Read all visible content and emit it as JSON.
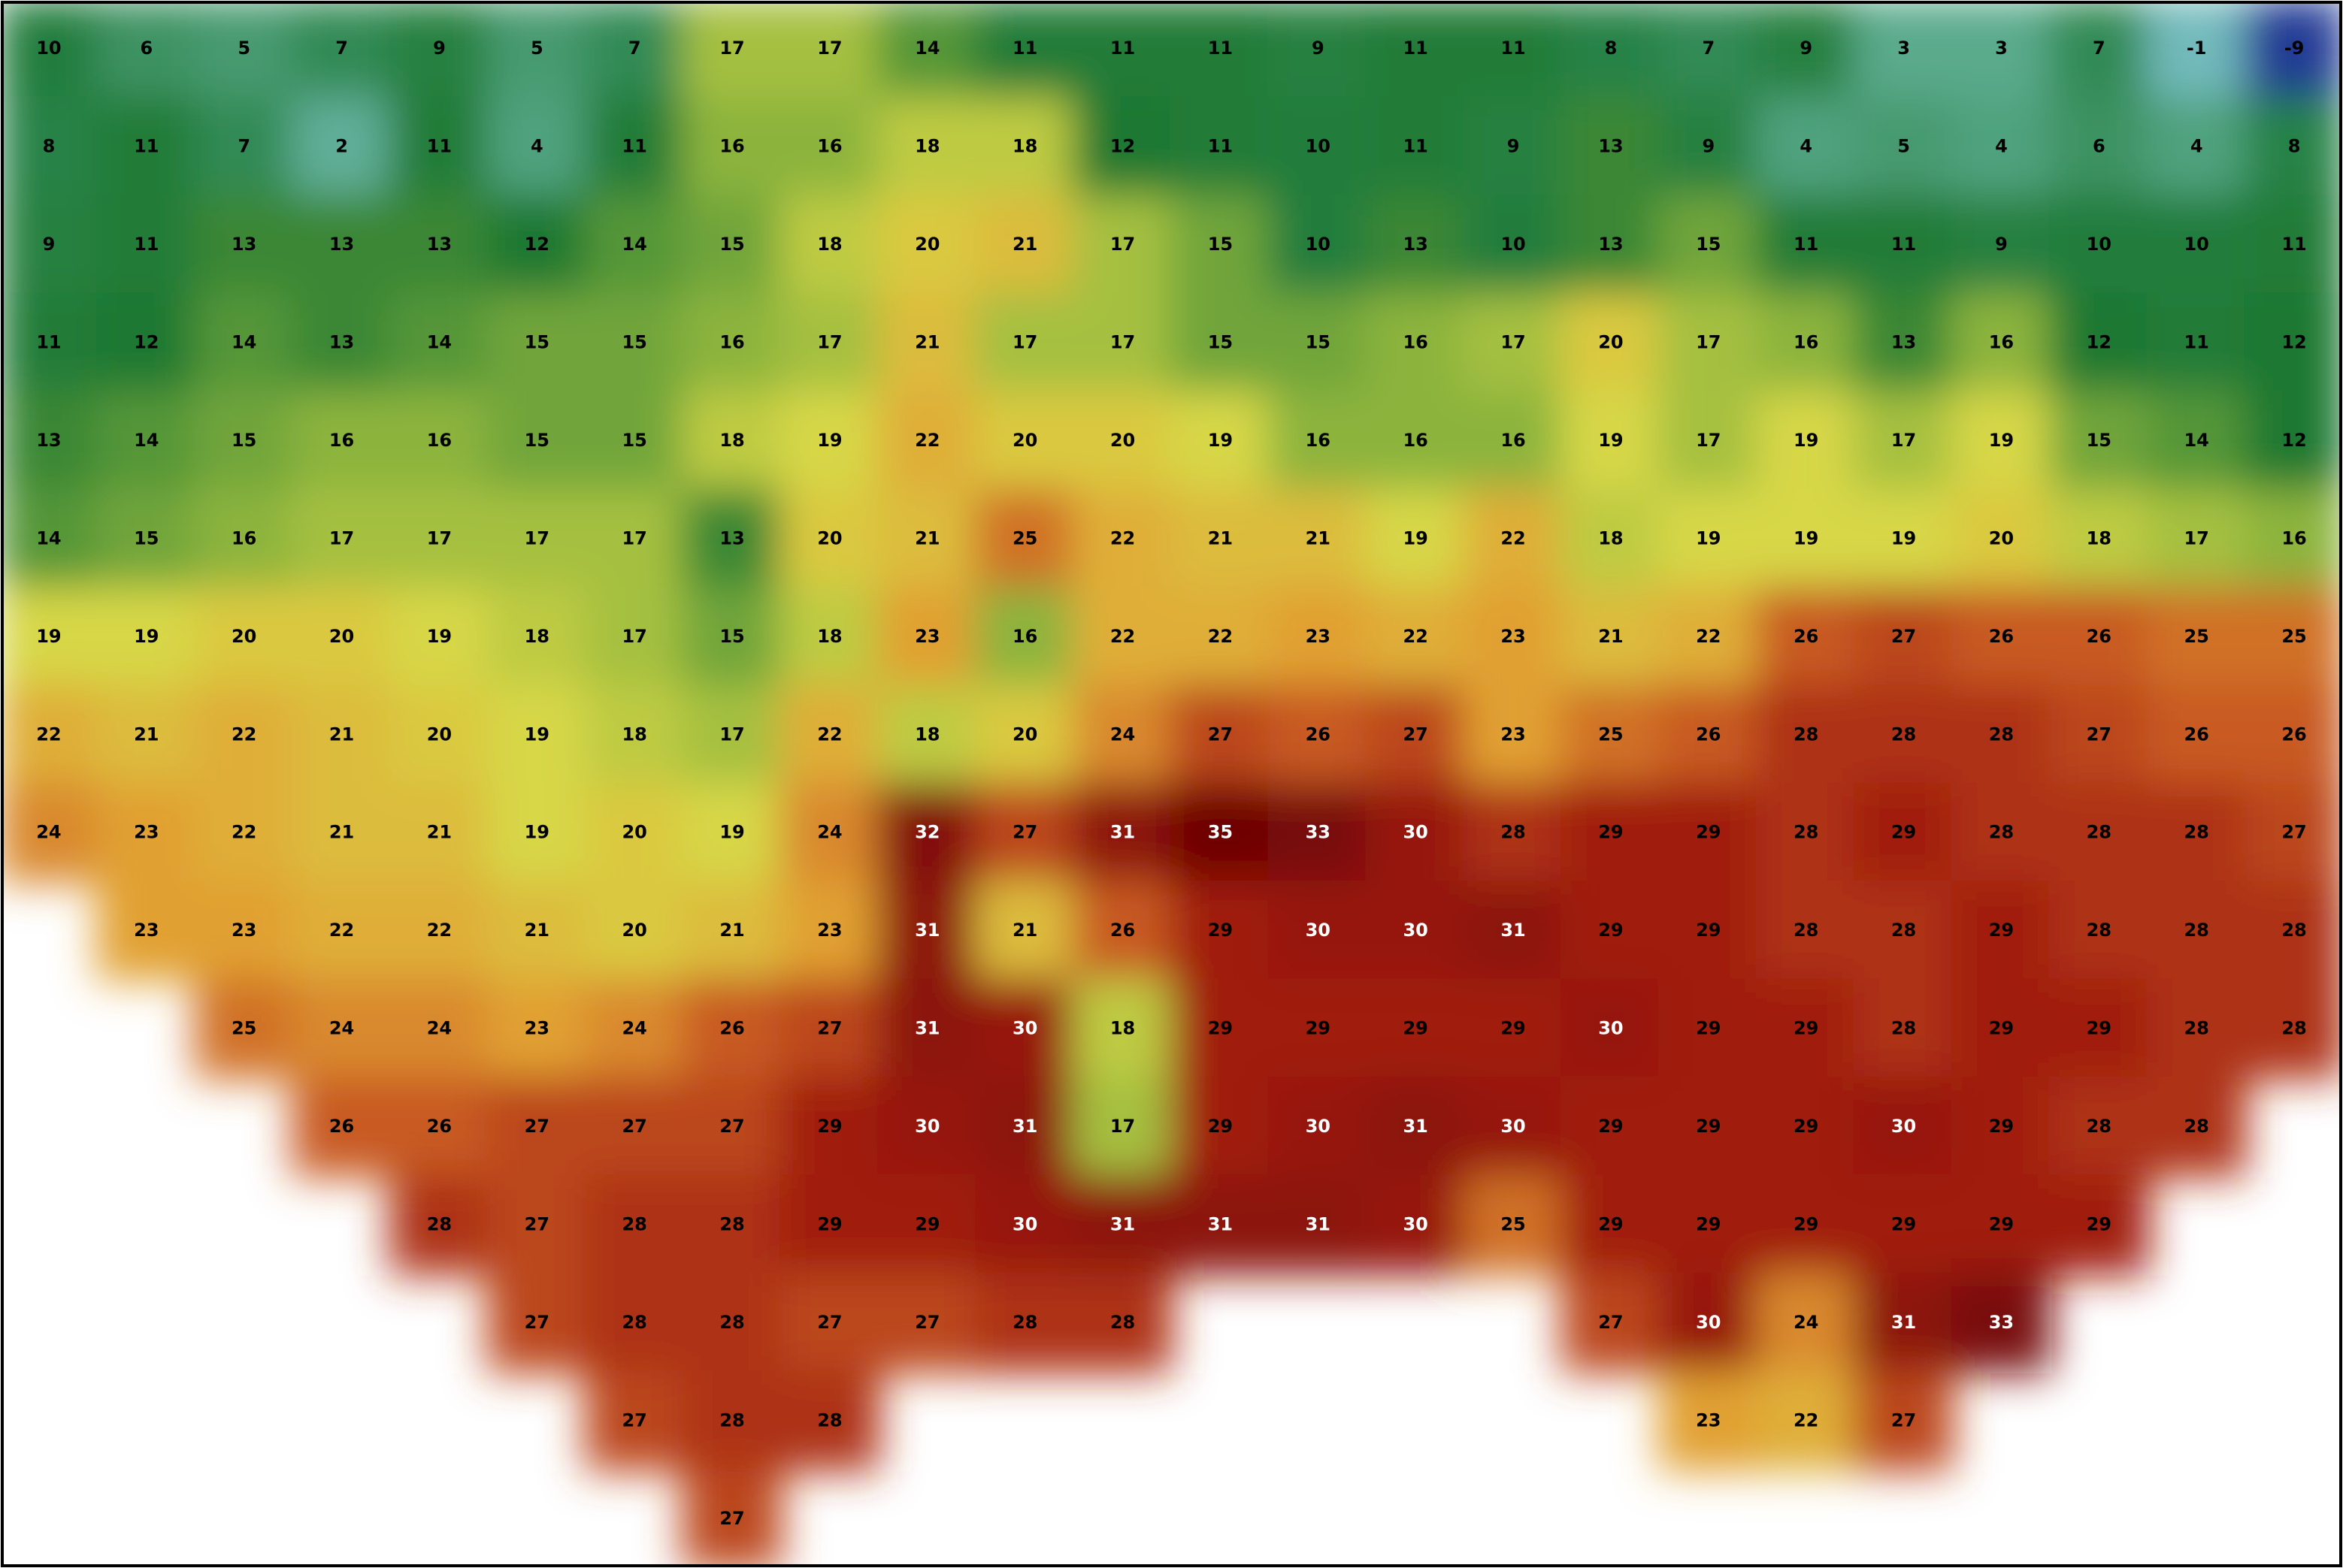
{
  "map": {
    "rows": [
      [
        10,
        6,
        5,
        7,
        9,
        5,
        7,
        17,
        17,
        14,
        11,
        11,
        11,
        9,
        11,
        11,
        8,
        7,
        9,
        3,
        3,
        7,
        -1,
        -9
      ],
      [
        8,
        11,
        7,
        2,
        11,
        4,
        11,
        16,
        16,
        18,
        18,
        12,
        11,
        10,
        11,
        9,
        13,
        9,
        4,
        5,
        4,
        6,
        4,
        8
      ],
      [
        9,
        11,
        13,
        13,
        13,
        12,
        14,
        15,
        18,
        20,
        21,
        17,
        15,
        10,
        13,
        10,
        13,
        15,
        11,
        11,
        9,
        10,
        10,
        11
      ],
      [
        11,
        12,
        14,
        13,
        14,
        15,
        15,
        16,
        17,
        21,
        17,
        17,
        15,
        15,
        16,
        17,
        20,
        17,
        16,
        13,
        16,
        12,
        11,
        12
      ],
      [
        13,
        14,
        15,
        16,
        16,
        15,
        15,
        18,
        19,
        22,
        20,
        20,
        19,
        16,
        16,
        16,
        19,
        17,
        19,
        17,
        19,
        15,
        14,
        12
      ],
      [
        14,
        15,
        16,
        17,
        17,
        17,
        17,
        13,
        20,
        21,
        25,
        22,
        21,
        21,
        19,
        22,
        18,
        19,
        19,
        19,
        20,
        18,
        17,
        16
      ],
      [
        19,
        19,
        20,
        20,
        19,
        18,
        17,
        15,
        18,
        23,
        16,
        22,
        22,
        23,
        22,
        23,
        21,
        22,
        26,
        27,
        26,
        26,
        25,
        25
      ],
      [
        22,
        21,
        22,
        21,
        20,
        19,
        18,
        17,
        22,
        18,
        20,
        24,
        27,
        26,
        27,
        23,
        25,
        26,
        28,
        28,
        28,
        27,
        26,
        26
      ],
      [
        24,
        23,
        22,
        21,
        21,
        19,
        20,
        19,
        24,
        32,
        27,
        31,
        35,
        33,
        30,
        28,
        29,
        29,
        28,
        29,
        28,
        28,
        28,
        27
      ],
      [
        null,
        23,
        23,
        22,
        22,
        21,
        20,
        21,
        23,
        31,
        21,
        26,
        29,
        30,
        30,
        31,
        29,
        29,
        28,
        28,
        29,
        28,
        28,
        28
      ],
      [
        null,
        null,
        25,
        24,
        24,
        23,
        24,
        26,
        27,
        31,
        30,
        18,
        29,
        29,
        29,
        29,
        30,
        29,
        29,
        28,
        29,
        29,
        28,
        28
      ],
      [
        null,
        null,
        null,
        26,
        26,
        27,
        27,
        27,
        29,
        30,
        31,
        17,
        29,
        30,
        31,
        30,
        29,
        29,
        29,
        30,
        29,
        28,
        28,
        null
      ],
      [
        null,
        null,
        null,
        null,
        28,
        27,
        28,
        28,
        29,
        29,
        30,
        31,
        31,
        31,
        30,
        25,
        29,
        29,
        29,
        29,
        29,
        29,
        null,
        null
      ],
      [
        null,
        null,
        null,
        null,
        null,
        27,
        28,
        28,
        27,
        27,
        28,
        28,
        null,
        null,
        null,
        null,
        27,
        30,
        24,
        31,
        33,
        null,
        null,
        null
      ],
      [
        null,
        null,
        null,
        null,
        null,
        null,
        27,
        28,
        28,
        null,
        null,
        null,
        null,
        null,
        null,
        null,
        null,
        23,
        22,
        27,
        null,
        null,
        null,
        null
      ],
      [
        null,
        null,
        null,
        null,
        null,
        null,
        null,
        27,
        null,
        null,
        null,
        null,
        null,
        null,
        null,
        null,
        null,
        null,
        null,
        null,
        null,
        null,
        null,
        null
      ]
    ]
  }
}
